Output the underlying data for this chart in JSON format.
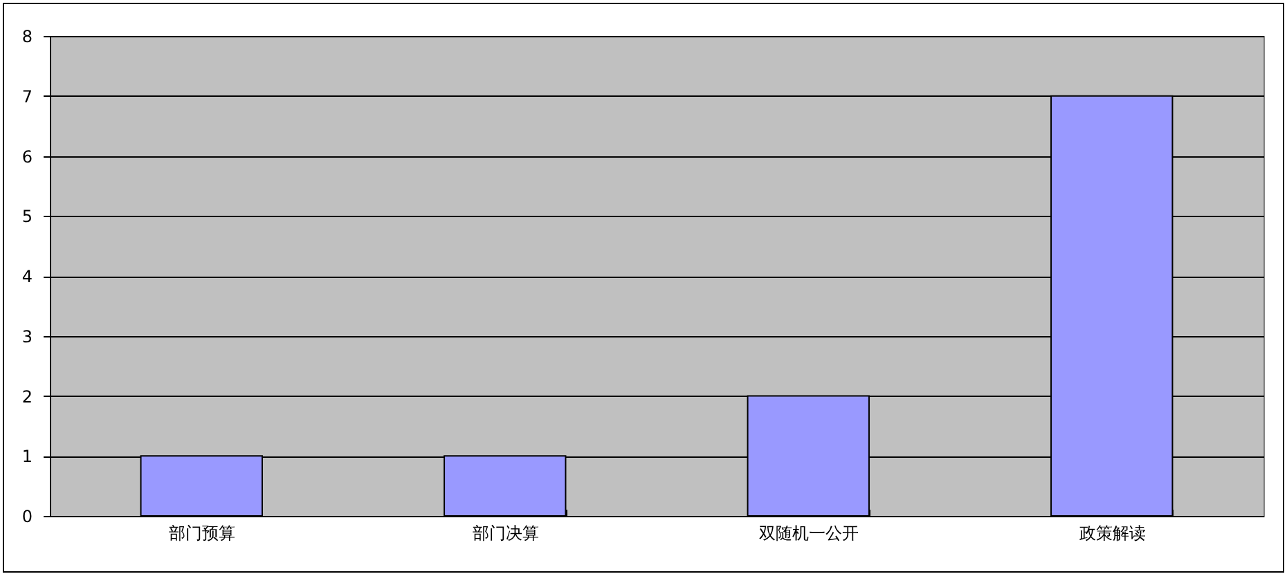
{
  "chart_data": {
    "type": "bar",
    "categories": [
      "部门预算",
      "部门决算",
      "双随机一公开",
      "政策解读"
    ],
    "values": [
      1,
      1,
      2,
      7
    ],
    "color": "#9999ff",
    "ylim": [
      0,
      8
    ],
    "yticks": [
      0,
      1,
      2,
      3,
      4,
      5,
      6,
      7,
      8
    ],
    "grid": "y"
  }
}
